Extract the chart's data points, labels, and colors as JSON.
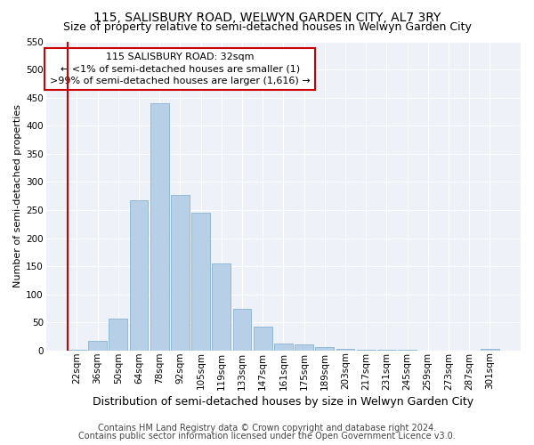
{
  "title": "115, SALISBURY ROAD, WELWYN GARDEN CITY, AL7 3RY",
  "subtitle": "Size of property relative to semi-detached houses in Welwyn Garden City",
  "xlabel": "Distribution of semi-detached houses by size in Welwyn Garden City",
  "ylabel": "Number of semi-detached properties",
  "footnote1": "Contains HM Land Registry data © Crown copyright and database right 2024.",
  "footnote2": "Contains public sector information licensed under the Open Government Licence v3.0.",
  "annotation_title": "115 SALISBURY ROAD: 32sqm",
  "annotation_line1": "← <1% of semi-detached houses are smaller (1)",
  "annotation_line2": ">99% of semi-detached houses are larger (1,616) →",
  "bar_color": "#b8cfe8",
  "bar_edge_color": "#7aaad0",
  "marker_line_color": "#cc0000",
  "annotation_box_color": "#cc0000",
  "background_color": "#eef2f8",
  "grid_color": "#ffffff",
  "categories": [
    "22sqm",
    "36sqm",
    "50sqm",
    "64sqm",
    "78sqm",
    "92sqm",
    "105sqm",
    "119sqm",
    "133sqm",
    "147sqm",
    "161sqm",
    "175sqm",
    "189sqm",
    "203sqm",
    "217sqm",
    "231sqm",
    "245sqm",
    "259sqm",
    "273sqm",
    "287sqm",
    "301sqm"
  ],
  "values": [
    1,
    18,
    57,
    268,
    440,
    277,
    245,
    155,
    75,
    43,
    13,
    11,
    6,
    3,
    2,
    1,
    1,
    0,
    0,
    0,
    3
  ],
  "ylim": [
    0,
    550
  ],
  "yticks": [
    0,
    50,
    100,
    150,
    200,
    250,
    300,
    350,
    400,
    450,
    500,
    550
  ],
  "title_fontsize": 10,
  "subtitle_fontsize": 9,
  "xlabel_fontsize": 9,
  "ylabel_fontsize": 8,
  "tick_fontsize": 7.5,
  "annot_title_fontsize": 8,
  "annot_body_fontsize": 8,
  "footnote_fontsize": 7
}
